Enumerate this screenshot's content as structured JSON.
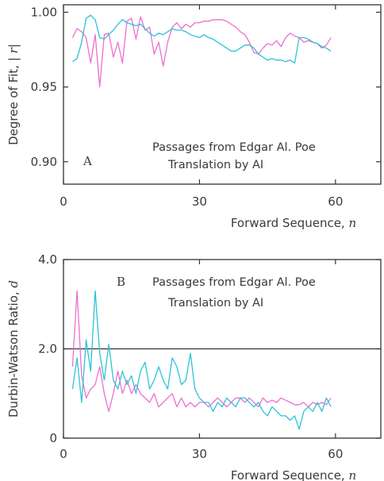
{
  "colors": {
    "magenta": "#ee6fcf",
    "cyan": "#2ec3d6",
    "frame": "#333333",
    "text": "#3a3a3a"
  },
  "chart_data": [
    {
      "type": "line",
      "panel": "A",
      "annotation_lines": [
        "Passages from Edgar Al. Poe",
        "Translation by AI"
      ],
      "xlabel": "Forward Sequence,",
      "xlabel_var": "n",
      "ylabel": "Degree of Fit, |",
      "ylabel_var": "r",
      "ylabel_end": "|",
      "xlim": [
        0,
        70
      ],
      "ylim": [
        0.885,
        1.005
      ],
      "xticks": [
        0,
        30,
        60
      ],
      "xtick_labels": [
        "0",
        "30",
        "60"
      ],
      "yticks": [
        0.9,
        0.95,
        1.0
      ],
      "ytick_labels": [
        "0.90",
        "0.95",
        "1.00"
      ],
      "grid": false,
      "series": [
        {
          "color": "magenta",
          "x": [
            2,
            3,
            4,
            5,
            6,
            7,
            8,
            9,
            10,
            11,
            12,
            13,
            14,
            15,
            16,
            17,
            18,
            19,
            20,
            21,
            22,
            23,
            24,
            25,
            26,
            27,
            28,
            29,
            30,
            31,
            32,
            33,
            34,
            35,
            36,
            37,
            38,
            39,
            40,
            41,
            42,
            43,
            44,
            45,
            46,
            47,
            48,
            49,
            50,
            51,
            52,
            53,
            54,
            55,
            56,
            57,
            58,
            59
          ],
          "y": [
            0.983,
            0.989,
            0.987,
            0.983,
            0.966,
            0.985,
            0.95,
            0.985,
            0.986,
            0.97,
            0.98,
            0.966,
            0.994,
            0.996,
            0.982,
            0.997,
            0.988,
            0.99,
            0.972,
            0.98,
            0.964,
            0.98,
            0.99,
            0.993,
            0.989,
            0.992,
            0.99,
            0.993,
            0.993,
            0.994,
            0.994,
            0.995,
            0.995,
            0.995,
            0.994,
            0.992,
            0.99,
            0.987,
            0.985,
            0.98,
            0.973,
            0.972,
            0.976,
            0.979,
            0.978,
            0.981,
            0.977,
            0.983,
            0.986,
            0.984,
            0.983,
            0.98,
            0.981,
            0.98,
            0.979,
            0.976,
            0.978,
            0.983
          ]
        },
        {
          "color": "cyan",
          "x": [
            2,
            3,
            4,
            5,
            6,
            7,
            8,
            9,
            10,
            11,
            12,
            13,
            14,
            15,
            16,
            17,
            18,
            19,
            20,
            21,
            22,
            23,
            24,
            25,
            26,
            27,
            28,
            29,
            30,
            31,
            32,
            33,
            34,
            35,
            36,
            37,
            38,
            39,
            40,
            41,
            42,
            43,
            44,
            45,
            46,
            47,
            48,
            49,
            50,
            51,
            52,
            53,
            54,
            55,
            56,
            57,
            58,
            59
          ],
          "y": [
            0.967,
            0.969,
            0.98,
            0.996,
            0.998,
            0.995,
            0.983,
            0.982,
            0.985,
            0.988,
            0.992,
            0.995,
            0.993,
            0.992,
            0.991,
            0.992,
            0.989,
            0.986,
            0.984,
            0.986,
            0.985,
            0.987,
            0.989,
            0.988,
            0.988,
            0.987,
            0.985,
            0.984,
            0.983,
            0.985,
            0.983,
            0.982,
            0.98,
            0.978,
            0.976,
            0.974,
            0.974,
            0.976,
            0.978,
            0.978,
            0.976,
            0.972,
            0.97,
            0.968,
            0.969,
            0.968,
            0.968,
            0.967,
            0.968,
            0.966,
            0.983,
            0.983,
            0.982,
            0.98,
            0.979,
            0.977,
            0.976,
            0.974
          ]
        }
      ]
    },
    {
      "type": "line",
      "panel": "B",
      "annotation_lines": [
        "Passages from Edgar Al. Poe",
        "Translation by AI"
      ],
      "xlabel": "Forward Sequence,",
      "xlabel_var": "n",
      "ylabel": "Durbin-Watson Ratio,",
      "ylabel_var": "d",
      "ylabel_end": "",
      "xlim": [
        0,
        70
      ],
      "ylim": [
        0,
        4.0
      ],
      "xticks": [
        0,
        30,
        60
      ],
      "xtick_labels": [
        "0",
        "30",
        "60"
      ],
      "yticks": [
        0,
        2.0,
        4.0
      ],
      "ytick_labels": [
        "0",
        "2.0",
        "4.0"
      ],
      "reference_line": 2.0,
      "grid": false,
      "series": [
        {
          "color": "magenta",
          "x": [
            2,
            3,
            4,
            5,
            6,
            7,
            8,
            9,
            10,
            11,
            12,
            13,
            14,
            15,
            16,
            17,
            18,
            19,
            20,
            21,
            22,
            23,
            24,
            25,
            26,
            27,
            28,
            29,
            30,
            31,
            32,
            33,
            34,
            35,
            36,
            37,
            38,
            39,
            40,
            41,
            42,
            43,
            44,
            45,
            46,
            47,
            48,
            49,
            50,
            51,
            52,
            53,
            54,
            55,
            56,
            57,
            58,
            59
          ],
          "y": [
            1.6,
            3.3,
            1.4,
            0.9,
            1.1,
            1.2,
            1.6,
            1.0,
            0.6,
            1.0,
            1.5,
            1.0,
            1.3,
            1.0,
            1.2,
            1.0,
            0.9,
            0.8,
            1.0,
            0.7,
            0.8,
            0.9,
            1.0,
            0.7,
            0.9,
            0.7,
            0.8,
            0.7,
            0.8,
            0.8,
            0.7,
            0.8,
            0.9,
            0.8,
            0.7,
            0.8,
            0.9,
            0.9,
            0.8,
            0.9,
            0.8,
            0.7,
            0.9,
            0.8,
            0.85,
            0.8,
            0.9,
            0.85,
            0.8,
            0.75,
            0.75,
            0.8,
            0.7,
            0.8,
            0.75,
            0.8,
            0.75,
            0.9
          ]
        },
        {
          "color": "cyan",
          "x": [
            2,
            3,
            4,
            5,
            6,
            7,
            8,
            9,
            10,
            11,
            12,
            13,
            14,
            15,
            16,
            17,
            18,
            19,
            20,
            21,
            22,
            23,
            24,
            25,
            26,
            27,
            28,
            29,
            30,
            31,
            32,
            33,
            34,
            35,
            36,
            37,
            38,
            39,
            40,
            41,
            42,
            43,
            44,
            45,
            46,
            47,
            48,
            49,
            50,
            51,
            52,
            53,
            54,
            55,
            56,
            57,
            58,
            59
          ],
          "y": [
            1.1,
            1.8,
            0.8,
            2.2,
            1.5,
            3.3,
            1.9,
            1.3,
            2.1,
            1.3,
            1.1,
            1.5,
            1.2,
            1.4,
            1.0,
            1.5,
            1.7,
            1.1,
            1.3,
            1.6,
            1.3,
            1.1,
            1.8,
            1.6,
            1.2,
            1.3,
            1.9,
            1.1,
            0.9,
            0.8,
            0.8,
            0.6,
            0.8,
            0.7,
            0.9,
            0.8,
            0.7,
            0.9,
            0.9,
            0.8,
            0.7,
            0.8,
            0.6,
            0.5,
            0.7,
            0.6,
            0.5,
            0.5,
            0.4,
            0.5,
            0.2,
            0.6,
            0.7,
            0.6,
            0.8,
            0.6,
            0.9,
            0.7
          ]
        }
      ]
    }
  ]
}
